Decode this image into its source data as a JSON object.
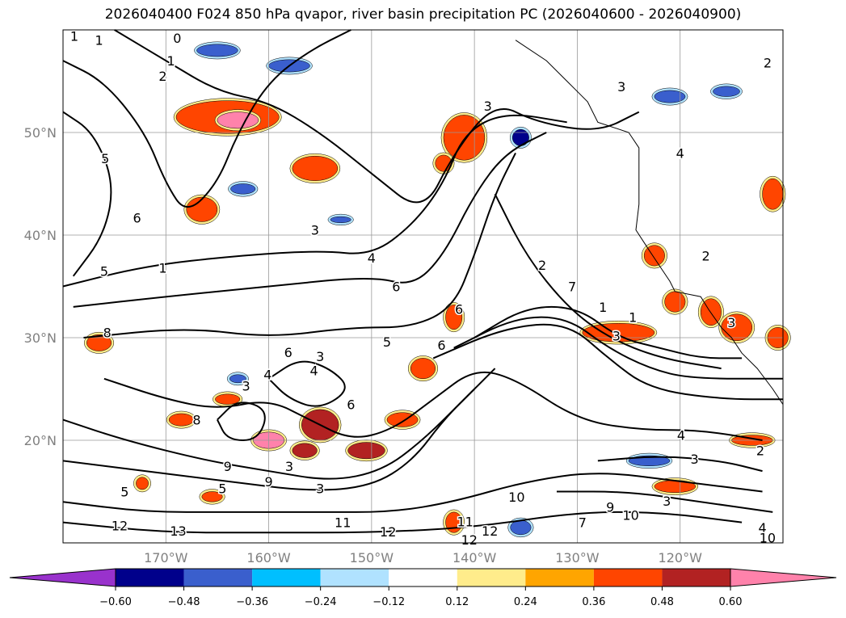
{
  "title": "2026040400 F024 850 hPa qvapor, river basin precipitation PC (2026040600 - 2026040900)",
  "chart_data": {
    "type": "contour-map",
    "extent": {
      "lon": [
        -180,
        -110
      ],
      "lat": [
        10,
        60
      ]
    },
    "lat_ticks": [
      {
        "v": 50,
        "label": "50°N"
      },
      {
        "v": 40,
        "label": "40°N"
      },
      {
        "v": 30,
        "label": "30°N"
      },
      {
        "v": 20,
        "label": "20°N"
      }
    ],
    "lon_ticks": [
      {
        "v": -170,
        "label": "170°W"
      },
      {
        "v": -160,
        "label": "160°W"
      },
      {
        "v": -150,
        "label": "150°W"
      },
      {
        "v": -140,
        "label": "140°W"
      },
      {
        "v": -130,
        "label": "130°W"
      },
      {
        "v": -120,
        "label": "120°W"
      }
    ],
    "colorbar": {
      "levels": [
        "−0.60",
        "−0.48",
        "−0.36",
        "−0.24",
        "−0.12",
        "0.12",
        "0.24",
        "0.36",
        "0.48",
        "0.60"
      ],
      "colors": [
        "#9932CC",
        "#00008B",
        "#3A5FCD",
        "#00BFFF",
        "#B0E2FF",
        "#FFFFFF",
        "#FFEC8B",
        "#FFA500",
        "#FF4500",
        "#B22222",
        "#FF82AB"
      ]
    },
    "contours": [
      [
        [
          -180,
          57
        ],
        [
          -176,
          55
        ],
        [
          -172,
          50
        ],
        [
          -170,
          45
        ],
        [
          -168,
          42
        ],
        [
          -165,
          45
        ],
        [
          -163,
          50
        ],
        [
          -160,
          55
        ],
        [
          -156,
          58
        ],
        [
          -152,
          60
        ]
      ],
      [
        [
          -180,
          52
        ],
        [
          -177,
          50
        ],
        [
          -175,
          45
        ],
        [
          -176,
          40
        ],
        [
          -179,
          36
        ]
      ],
      [
        [
          -175,
          60
        ],
        [
          -170,
          57
        ],
        [
          -165,
          54
        ],
        [
          -160,
          53
        ],
        [
          -155,
          50
        ],
        [
          -150,
          46
        ],
        [
          -145,
          42
        ],
        [
          -142,
          48
        ],
        [
          -138,
          53
        ],
        [
          -134,
          51
        ],
        [
          -128,
          50
        ],
        [
          -124,
          52
        ]
      ],
      [
        [
          -180,
          35
        ],
        [
          -172,
          37
        ],
        [
          -163,
          38
        ],
        [
          -155,
          38.5
        ],
        [
          -150,
          38
        ],
        [
          -146,
          41
        ],
        [
          -143,
          45
        ],
        [
          -141,
          50
        ],
        [
          -137,
          52
        ],
        [
          -131,
          51
        ]
      ],
      [
        [
          -179,
          33
        ],
        [
          -170,
          34
        ],
        [
          -160,
          35
        ],
        [
          -150,
          36
        ],
        [
          -146,
          35
        ],
        [
          -143,
          38
        ],
        [
          -140,
          44
        ],
        [
          -137,
          48
        ],
        [
          -133,
          50
        ]
      ],
      [
        [
          -178,
          30
        ],
        [
          -168,
          31
        ],
        [
          -160,
          30
        ],
        [
          -152,
          31
        ],
        [
          -146,
          31
        ],
        [
          -142,
          33
        ],
        [
          -140,
          38
        ],
        [
          -138,
          44
        ],
        [
          -136,
          48
        ]
      ],
      [
        [
          -138,
          44
        ],
        [
          -135,
          38
        ],
        [
          -131,
          33
        ],
        [
          -127,
          30
        ],
        [
          -122,
          28
        ],
        [
          -116,
          27
        ]
      ],
      [
        [
          -140,
          30
        ],
        [
          -135,
          33
        ],
        [
          -130,
          33
        ],
        [
          -126,
          30
        ],
        [
          -122,
          29
        ],
        [
          -118,
          28
        ],
        [
          -114,
          28
        ]
      ],
      [
        [
          -142,
          29
        ],
        [
          -136,
          32
        ],
        [
          -131,
          32
        ],
        [
          -127,
          29
        ],
        [
          -123,
          27
        ],
        [
          -119,
          26
        ],
        [
          -110,
          26
        ]
      ],
      [
        [
          -144,
          28
        ],
        [
          -137,
          31
        ],
        [
          -131,
          31.5
        ],
        [
          -127,
          28
        ],
        [
          -123,
          25
        ],
        [
          -116,
          24
        ],
        [
          -110,
          24
        ]
      ],
      [
        [
          -180,
          22
        ],
        [
          -174,
          20
        ],
        [
          -166,
          18
        ],
        [
          -160,
          17
        ],
        [
          -154,
          16
        ],
        [
          -149,
          17
        ],
        [
          -145,
          20
        ],
        [
          -141,
          24
        ],
        [
          -138,
          27
        ]
      ],
      [
        [
          -180,
          18
        ],
        [
          -172,
          17
        ],
        [
          -164,
          16
        ],
        [
          -156,
          15
        ],
        [
          -150,
          15.5
        ],
        [
          -146,
          18
        ],
        [
          -143,
          22
        ],
        [
          -140,
          25
        ]
      ],
      [
        [
          -180,
          14
        ],
        [
          -172,
          13
        ],
        [
          -164,
          13
        ],
        [
          -155,
          13
        ],
        [
          -148,
          13
        ],
        [
          -142,
          14
        ],
        [
          -135,
          16
        ],
        [
          -128,
          17
        ],
        [
          -120,
          16
        ],
        [
          -112,
          15
        ]
      ],
      [
        [
          -180,
          12
        ],
        [
          -170,
          11
        ],
        [
          -160,
          11
        ],
        [
          -150,
          11
        ],
        [
          -140,
          11.5
        ],
        [
          -130,
          13
        ],
        [
          -122,
          13
        ],
        [
          -114,
          12
        ]
      ],
      [
        [
          -176,
          26
        ],
        [
          -170,
          24
        ],
        [
          -165,
          23
        ],
        [
          -160,
          24
        ],
        [
          -156,
          22
        ],
        [
          -152,
          20
        ],
        [
          -148,
          21
        ],
        [
          -144,
          24
        ],
        [
          -140,
          27
        ],
        [
          -136,
          26
        ],
        [
          -130,
          22
        ],
        [
          -124,
          21
        ],
        [
          -118,
          21
        ],
        [
          -112,
          20
        ]
      ],
      [
        [
          -128,
          18
        ],
        [
          -122,
          18.5
        ],
        [
          -116,
          18
        ],
        [
          -112,
          17
        ]
      ],
      [
        [
          -132,
          15
        ],
        [
          -125,
          15
        ],
        [
          -118,
          14
        ],
        [
          -111,
          13
        ]
      ],
      [
        [
          -160,
          26
        ],
        [
          -157,
          28
        ],
        [
          -154,
          27
        ],
        [
          -152,
          25
        ],
        [
          -155,
          23
        ],
        [
          -158,
          24
        ],
        [
          -160,
          26
        ]
      ],
      [
        [
          -165,
          22
        ],
        [
          -163,
          24
        ],
        [
          -160,
          23
        ],
        [
          -161,
          20
        ],
        [
          -164,
          20
        ],
        [
          -165,
          22
        ]
      ]
    ],
    "contour_labels": [
      {
        "lon": -178.9,
        "lat": 59.4,
        "t": "1"
      },
      {
        "lon": -176.5,
        "lat": 59,
        "t": "1"
      },
      {
        "lon": -168.9,
        "lat": 59.2,
        "t": "0"
      },
      {
        "lon": -169.5,
        "lat": 57,
        "t": "1"
      },
      {
        "lon": -170.3,
        "lat": 55.5,
        "t": "2"
      },
      {
        "lon": -138.7,
        "lat": 52.6,
        "t": "3"
      },
      {
        "lon": -175.9,
        "lat": 47.5,
        "t": "5"
      },
      {
        "lon": -170.3,
        "lat": 36.8,
        "t": "1"
      },
      {
        "lon": -155.5,
        "lat": 40.5,
        "t": "3"
      },
      {
        "lon": -172.8,
        "lat": 41.7,
        "t": "6"
      },
      {
        "lon": -176,
        "lat": 36.5,
        "t": "5"
      },
      {
        "lon": -150,
        "lat": 37.8,
        "t": "4"
      },
      {
        "lon": -133.4,
        "lat": 37.1,
        "t": "2"
      },
      {
        "lon": -147.6,
        "lat": 35,
        "t": "6"
      },
      {
        "lon": -141.5,
        "lat": 32.8,
        "t": "6"
      },
      {
        "lon": -175.7,
        "lat": 30.5,
        "t": "8"
      },
      {
        "lon": -158.1,
        "lat": 28.6,
        "t": "6"
      },
      {
        "lon": -148.5,
        "lat": 29.6,
        "t": "5"
      },
      {
        "lon": -143.2,
        "lat": 29.3,
        "t": "6"
      },
      {
        "lon": -155,
        "lat": 28.2,
        "t": "3"
      },
      {
        "lon": -155.6,
        "lat": 26.8,
        "t": "4"
      },
      {
        "lon": -160.1,
        "lat": 26.4,
        "t": "4"
      },
      {
        "lon": -162.2,
        "lat": 25.3,
        "t": "3"
      },
      {
        "lon": -126.2,
        "lat": 30.2,
        "t": "3"
      },
      {
        "lon": -152,
        "lat": 23.5,
        "t": "6"
      },
      {
        "lon": -167,
        "lat": 22,
        "t": "8"
      },
      {
        "lon": -164,
        "lat": 17.5,
        "t": "9"
      },
      {
        "lon": -160,
        "lat": 16,
        "t": "9"
      },
      {
        "lon": -174,
        "lat": 15,
        "t": "5"
      },
      {
        "lon": -164.5,
        "lat": 15.3,
        "t": "5"
      },
      {
        "lon": -174.5,
        "lat": 11.7,
        "t": "12"
      },
      {
        "lon": -168.8,
        "lat": 11.2,
        "t": "13"
      },
      {
        "lon": -152.8,
        "lat": 12,
        "t": "11"
      },
      {
        "lon": -148.4,
        "lat": 11.1,
        "t": "12"
      },
      {
        "lon": -140.9,
        "lat": 12.1,
        "t": "11"
      },
      {
        "lon": -138.5,
        "lat": 11.2,
        "t": "12"
      },
      {
        "lon": -140.5,
        "lat": 10.3,
        "t": "12"
      },
      {
        "lon": -135.9,
        "lat": 14.5,
        "t": "10"
      },
      {
        "lon": -129.5,
        "lat": 12,
        "t": "7"
      },
      {
        "lon": -126.8,
        "lat": 13.5,
        "t": "9"
      },
      {
        "lon": -124.8,
        "lat": 12.7,
        "t": "10"
      },
      {
        "lon": -121.3,
        "lat": 14.1,
        "t": "3"
      },
      {
        "lon": -118.6,
        "lat": 18.2,
        "t": "3"
      },
      {
        "lon": -119.9,
        "lat": 20.5,
        "t": "4"
      },
      {
        "lon": -112.2,
        "lat": 19,
        "t": "2"
      },
      {
        "lon": -112,
        "lat": 11.5,
        "t": "4"
      },
      {
        "lon": -111.5,
        "lat": 10.5,
        "t": "10"
      },
      {
        "lon": -115,
        "lat": 31.5,
        "t": "3"
      },
      {
        "lon": -120,
        "lat": 48,
        "t": "4"
      },
      {
        "lon": -111.5,
        "lat": 56.8,
        "t": "2"
      },
      {
        "lon": -117.5,
        "lat": 38,
        "t": "2"
      },
      {
        "lon": -125.7,
        "lat": 54.5,
        "t": "3"
      },
      {
        "lon": -124.6,
        "lat": 32,
        "t": "1"
      },
      {
        "lon": -127.5,
        "lat": 33,
        "t": "1"
      },
      {
        "lon": -130.5,
        "lat": 35,
        "t": "7"
      },
      {
        "lon": -158,
        "lat": 17.5,
        "t": "3"
      },
      {
        "lon": -155,
        "lat": 15.3,
        "t": "3"
      }
    ],
    "shading": [
      {
        "lon": -164,
        "lat": 51.5,
        "rx": 5,
        "ry": 1.6,
        "c": 8
      },
      {
        "lon": -163,
        "lat": 51.2,
        "rx": 2,
        "ry": 0.8,
        "c": 10
      },
      {
        "lon": -155.5,
        "lat": 46.5,
        "rx": 2.2,
        "ry": 1.2,
        "c": 8
      },
      {
        "lon": -166.5,
        "lat": 42.5,
        "rx": 1.5,
        "ry": 1.2,
        "c": 8
      },
      {
        "lon": -141,
        "lat": 49.5,
        "rx": 2,
        "ry": 2.2,
        "c": 8
      },
      {
        "lon": -143,
        "lat": 47,
        "rx": 0.8,
        "ry": 0.8,
        "c": 8
      },
      {
        "lon": -135.5,
        "lat": 49.5,
        "rx": 0.8,
        "ry": 0.8,
        "c": 1
      },
      {
        "lon": -158,
        "lat": 56.5,
        "rx": 2,
        "ry": 0.6,
        "c": 2
      },
      {
        "lon": -165,
        "lat": 58,
        "rx": 2,
        "ry": 0.6,
        "c": 2
      },
      {
        "lon": -162.5,
        "lat": 44.5,
        "rx": 1.2,
        "ry": 0.5,
        "c": 2
      },
      {
        "lon": -126,
        "lat": 30.5,
        "rx": 3.5,
        "ry": 0.9,
        "c": 8
      },
      {
        "lon": -120.5,
        "lat": 33.5,
        "rx": 1,
        "ry": 1,
        "c": 8
      },
      {
        "lon": -117,
        "lat": 32.5,
        "rx": 1,
        "ry": 1.3,
        "c": 8
      },
      {
        "lon": -114.5,
        "lat": 31,
        "rx": 1.5,
        "ry": 1.3,
        "c": 8
      },
      {
        "lon": -110.5,
        "lat": 30,
        "rx": 1,
        "ry": 1,
        "c": 8
      },
      {
        "lon": -155,
        "lat": 21.5,
        "rx": 1.8,
        "ry": 1.5,
        "c": 9
      },
      {
        "lon": -160,
        "lat": 20,
        "rx": 1.5,
        "ry": 0.8,
        "c": 10
      },
      {
        "lon": -150.5,
        "lat": 19,
        "rx": 1.8,
        "ry": 0.8,
        "c": 9
      },
      {
        "lon": -156.5,
        "lat": 19,
        "rx": 1.2,
        "ry": 0.7,
        "c": 9
      },
      {
        "lon": -176.5,
        "lat": 29.5,
        "rx": 1.2,
        "ry": 0.8,
        "c": 8
      },
      {
        "lon": -168.5,
        "lat": 22,
        "rx": 1.2,
        "ry": 0.6,
        "c": 8
      },
      {
        "lon": -172.3,
        "lat": 15.8,
        "rx": 0.6,
        "ry": 0.6,
        "c": 8
      },
      {
        "lon": -142,
        "lat": 32,
        "rx": 0.8,
        "ry": 1.2,
        "c": 8
      },
      {
        "lon": -147,
        "lat": 22,
        "rx": 1.5,
        "ry": 0.7,
        "c": 8
      },
      {
        "lon": -120.5,
        "lat": 15.5,
        "rx": 2,
        "ry": 0.6,
        "c": 8
      },
      {
        "lon": -123,
        "lat": 18,
        "rx": 2,
        "ry": 0.5,
        "c": 2
      },
      {
        "lon": -113,
        "lat": 20,
        "rx": 2,
        "ry": 0.5,
        "c": 8
      },
      {
        "lon": -145,
        "lat": 27,
        "rx": 1.2,
        "ry": 1,
        "c": 8
      },
      {
        "lon": -142,
        "lat": 12,
        "rx": 0.8,
        "ry": 1,
        "c": 8
      },
      {
        "lon": -135.5,
        "lat": 11.5,
        "rx": 1,
        "ry": 0.7,
        "c": 2
      },
      {
        "lon": -153,
        "lat": 41.5,
        "rx": 1,
        "ry": 0.3,
        "c": 2
      },
      {
        "lon": -163,
        "lat": 26,
        "rx": 0.8,
        "ry": 0.4,
        "c": 2
      },
      {
        "lon": -115.5,
        "lat": 54,
        "rx": 1.3,
        "ry": 0.5,
        "c": 2
      },
      {
        "lon": -121,
        "lat": 53.5,
        "rx": 1.5,
        "ry": 0.6,
        "c": 2
      },
      {
        "lon": -122.5,
        "lat": 38,
        "rx": 1,
        "ry": 1,
        "c": 8
      },
      {
        "lon": -111,
        "lat": 44,
        "rx": 1,
        "ry": 1.5,
        "c": 8
      },
      {
        "lon": -165.5,
        "lat": 14.5,
        "rx": 1,
        "ry": 0.5,
        "c": 8
      },
      {
        "lon": -164,
        "lat": 24,
        "rx": 1.2,
        "ry": 0.5,
        "c": 8
      }
    ],
    "coastline": [
      [
        -136,
        59
      ],
      [
        -133,
        57
      ],
      [
        -131,
        55
      ],
      [
        -130,
        54
      ],
      [
        -129,
        53
      ],
      [
        -128,
        51
      ],
      [
        -125,
        50
      ],
      [
        -124,
        48.5
      ],
      [
        -124,
        46
      ],
      [
        -124,
        43
      ],
      [
        -124.3,
        40.5
      ],
      [
        -123,
        38.5
      ],
      [
        -122,
        37
      ],
      [
        -121,
        35.5
      ],
      [
        -120.5,
        34.5
      ],
      [
        -118,
        34
      ],
      [
        -117.2,
        32.7
      ],
      [
        -116,
        31
      ],
      [
        -115,
        30
      ],
      [
        -114,
        28.5
      ],
      [
        -112.5,
        27
      ],
      [
        -111,
        25
      ],
      [
        -110,
        23.5
      ]
    ]
  }
}
